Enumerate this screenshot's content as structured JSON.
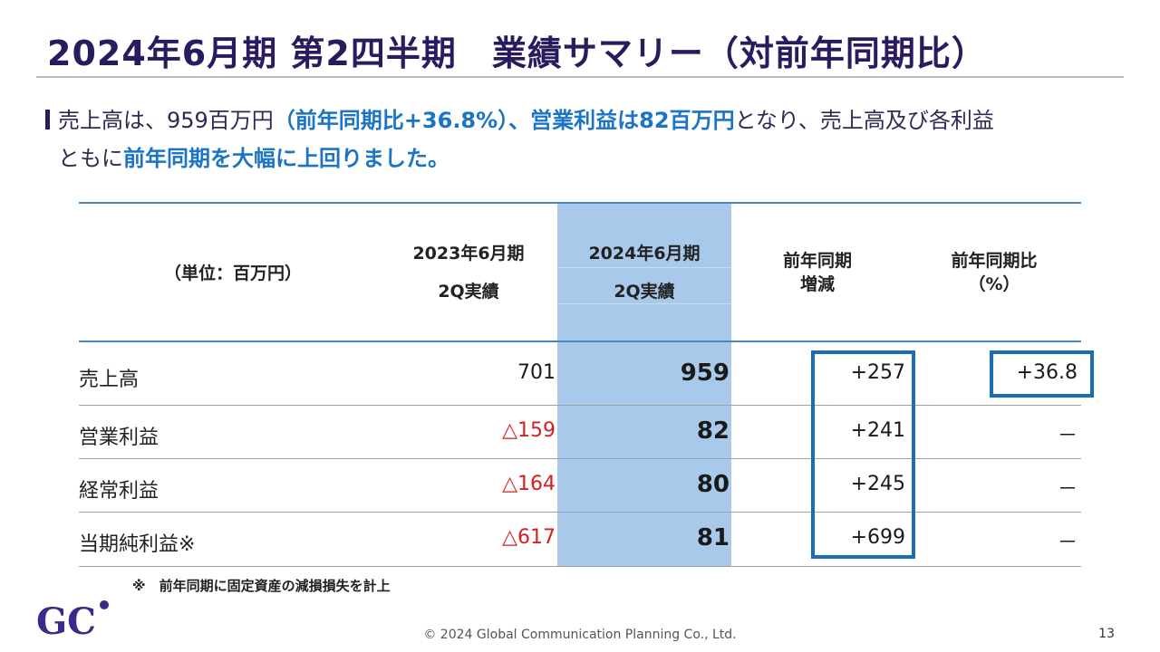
{
  "header": {
    "title": "2024年6月期 第2四半期　業績サマリー（対前年同期比）"
  },
  "summary": {
    "part1": "売上高は、959百万円",
    "part2": "（前年同期比+36.8%）、営業利益は82百万円",
    "part3": "となり、売上高及び各利益",
    "part4": "ともに",
    "part5": "前年同期を大幅に上回りました。"
  },
  "table": {
    "unit_label": "（単位：百万円）",
    "col_prev_line1": "2023年6月期",
    "col_prev_line2": "2Q実績",
    "col_curr_line1": "2024年6月期",
    "col_curr_line2": "2Q実績",
    "col_diff_line1": "前年同期",
    "col_diff_line2": "増減",
    "col_ratio_line1": "前年同期比",
    "col_ratio_line2": "（%）",
    "rows": [
      {
        "label": "売上高",
        "prev": "701",
        "curr": "959",
        "diff": "+257",
        "ratio": "+36.8"
      },
      {
        "label": "営業利益",
        "prev": "△159",
        "curr": "82",
        "diff": "+241",
        "ratio": "－"
      },
      {
        "label": "経常利益",
        "prev": "△164",
        "curr": "80",
        "diff": "+245",
        "ratio": "－"
      },
      {
        "label": "当期純利益※",
        "prev": "△617",
        "curr": "81",
        "diff": "+699",
        "ratio": "－"
      }
    ]
  },
  "footnote": "※　前年同期に固定資産の減損損失を計上",
  "footer": {
    "copyright": "© 2024 Global Communication Planning Co., Ltd.",
    "page_number": "13"
  },
  "logo": {
    "text": "GC"
  },
  "colors": {
    "title": "#2a1a5e",
    "highlight": "#1b74c5",
    "negative": "#d42020",
    "column_highlight": "#a8c9ea",
    "box": "#1b6eb5"
  }
}
